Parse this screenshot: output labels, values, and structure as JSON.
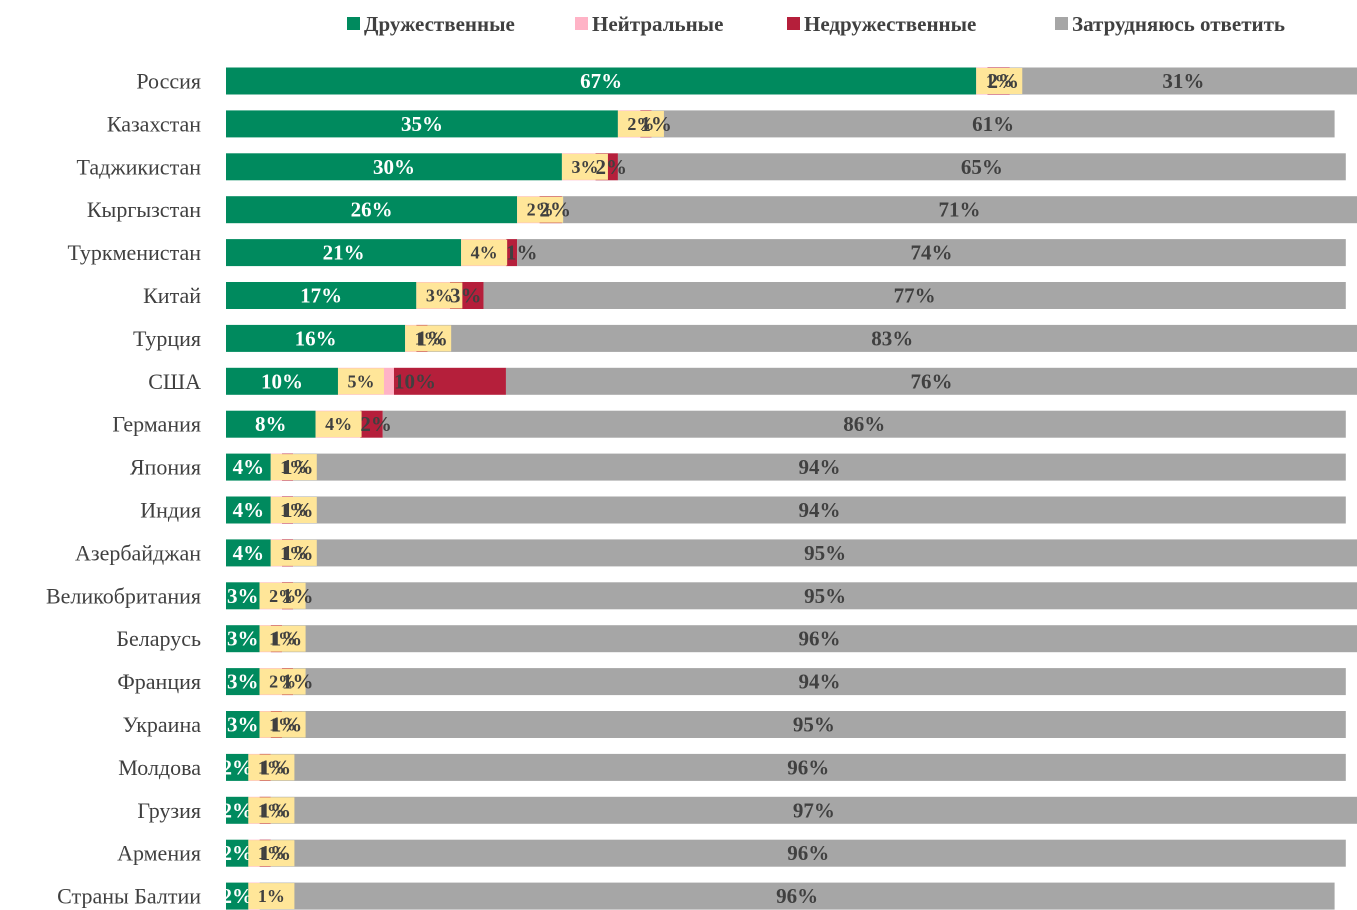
{
  "chart_data": {
    "type": "stacked-bar-horizontal",
    "categories": [
      "Россия",
      "Казахстан",
      "Таджикистан",
      "Кыргызстан",
      "Туркменистан",
      "Китай",
      "Турция",
      "США",
      "Германия",
      "Япония",
      "Индия",
      "Азербайджан",
      "Великобритания",
      "Беларусь",
      "Франция",
      "Украина",
      "Молдова",
      "Грузия",
      "Армения",
      "Страны Балтии"
    ],
    "series": [
      {
        "name": "Дружественные",
        "color": "#008a5e",
        "values": [
          67,
          35,
          30,
          26,
          21,
          17,
          16,
          10,
          8,
          4,
          4,
          4,
          3,
          3,
          3,
          3,
          2,
          2,
          2,
          2
        ],
        "value_labels": [
          "67%",
          "35%",
          "30%",
          "26%",
          "21%",
          "17%",
          "16%",
          "10%",
          "8%",
          "4%",
          "4%",
          "4%",
          "3%",
          "3%",
          "3%",
          "3%",
          "2%",
          "2%",
          "2%",
          "2%"
        ]
      },
      {
        "name": "Нейтральные",
        "color": "#ffb3c6",
        "values": [
          1,
          2,
          3,
          2,
          4,
          3,
          1,
          5,
          4,
          1,
          1,
          1,
          2,
          1,
          2,
          1,
          1,
          1,
          1,
          1
        ],
        "value_labels": [
          "1%",
          "2%",
          "3%",
          "2%",
          "4%",
          "3%",
          "1%",
          "5%",
          "4%",
          "1%",
          "1%",
          "1%",
          "2%",
          "1%",
          "2%",
          "1%",
          "1%",
          "1%",
          "1%",
          "1%"
        ]
      },
      {
        "name": "Недружественные",
        "color": "#b51f3b",
        "values": [
          2,
          1,
          2,
          2,
          1,
          3,
          1,
          10,
          2,
          1,
          1,
          1,
          1,
          1,
          1,
          1,
          1,
          1,
          1,
          null
        ],
        "value_labels": [
          "2%",
          "1%",
          "2%",
          "2%",
          "1%",
          "3%",
          "1%",
          "10%",
          "2%",
          "1%",
          "1%",
          "1%",
          "1%",
          "1%",
          "1%",
          "1%",
          "1%",
          "1%",
          "1%",
          null
        ]
      },
      {
        "name": "Затрудняюсь ответить",
        "color": "#a6a6a6",
        "values": [
          31,
          61,
          65,
          71,
          74,
          77,
          83,
          76,
          86,
          94,
          94,
          95,
          95,
          96,
          94,
          95,
          96,
          97,
          96,
          96
        ],
        "value_labels": [
          "31%",
          "61%",
          "65%",
          "71%",
          "74%",
          "77%",
          "83%",
          "76%",
          "86%",
          "94%",
          "94%",
          "95%",
          "95%",
          "96%",
          "94%",
          "95%",
          "96%",
          "97%",
          "96%",
          "96%"
        ]
      }
    ],
    "legend": "top-right"
  }
}
